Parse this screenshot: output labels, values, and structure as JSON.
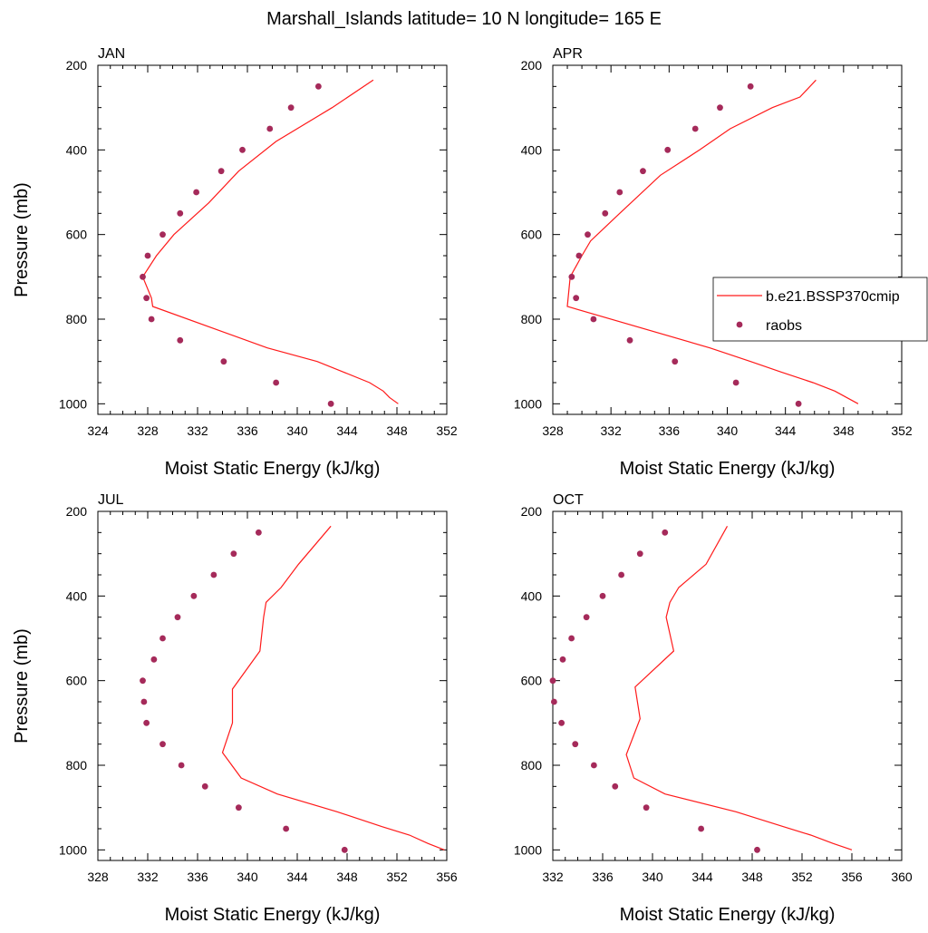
{
  "title": "Marshall_Islands  latitude= 10 N longitude= 165 E",
  "legend": {
    "items": [
      {
        "label": "b.e21.BSSP370cmip",
        "kind": "line"
      },
      {
        "label": "raobs",
        "kind": "marker"
      }
    ]
  },
  "colors": {
    "model_line": "#ff1a1a",
    "raobs_marker": "#a52a5a"
  },
  "chart_data": [
    {
      "type": "line",
      "title": "JAN",
      "xlabel": "Moist Static Energy (kJ/kg)",
      "ylabel": "Pressure (mb)",
      "xlim": [
        324,
        352
      ],
      "ylim": [
        1025,
        200
      ],
      "xticks": [
        324,
        328,
        332,
        336,
        340,
        344,
        348,
        352
      ],
      "yticks": [
        200,
        400,
        600,
        800,
        1000
      ],
      "series": [
        {
          "name": "b.e21.BSSP370cmip",
          "style": "line",
          "x": [
            348.1,
            347.4,
            346.9,
            345.8,
            343.7,
            341.6,
            337.6,
            328.4,
            328.3,
            327.6,
            328.7,
            330.1,
            332.9,
            335.3,
            338.3,
            342.8,
            346.1
          ],
          "y": [
            1000,
            985,
            970,
            950,
            925,
            900,
            868,
            770,
            750,
            700,
            650,
            600,
            525,
            450,
            380,
            300,
            235
          ]
        },
        {
          "name": "raobs",
          "style": "marker",
          "x": [
            342.7,
            338.3,
            334.1,
            330.6,
            328.3,
            327.9,
            327.6,
            328.0,
            329.2,
            330.6,
            331.9,
            333.9,
            335.6,
            337.8,
            339.5,
            341.7
          ],
          "y": [
            1000,
            950,
            900,
            850,
            800,
            750,
            700,
            650,
            600,
            550,
            500,
            450,
            400,
            350,
            300,
            250
          ]
        }
      ]
    },
    {
      "type": "line",
      "title": "APR",
      "xlabel": "Moist Static Energy (kJ/kg)",
      "ylabel": "",
      "xlim": [
        328,
        352
      ],
      "ylim": [
        1025,
        200
      ],
      "xticks": [
        328,
        332,
        336,
        340,
        344,
        348,
        352
      ],
      "yticks": [
        200,
        400,
        600,
        800,
        1000
      ],
      "series": [
        {
          "name": "b.e21.BSSP370cmip",
          "style": "line",
          "x": [
            349.0,
            347.4,
            345.9,
            343.7,
            341.6,
            338.8,
            329.0,
            329.2,
            330.0,
            330.6,
            332.6,
            335.4,
            338.1,
            340.2,
            343.1,
            345.0,
            346.1
          ],
          "y": [
            1000,
            970,
            950,
            925,
            900,
            868,
            770,
            700,
            650,
            615,
            550,
            460,
            400,
            350,
            300,
            275,
            235
          ]
        },
        {
          "name": "raobs",
          "style": "marker",
          "x": [
            344.9,
            340.6,
            336.4,
            333.3,
            330.8,
            329.6,
            329.3,
            329.8,
            330.4,
            331.6,
            332.6,
            334.2,
            335.9,
            337.8,
            339.5,
            341.6
          ],
          "y": [
            1000,
            950,
            900,
            850,
            800,
            750,
            700,
            650,
            600,
            550,
            500,
            450,
            400,
            350,
            300,
            250
          ]
        }
      ]
    },
    {
      "type": "line",
      "title": "JUL",
      "xlabel": "Moist Static Energy (kJ/kg)",
      "ylabel": "Pressure (mb)",
      "xlim": [
        328,
        356
      ],
      "ylim": [
        1025,
        200
      ],
      "xticks": [
        328,
        332,
        336,
        340,
        344,
        348,
        352,
        356
      ],
      "yticks": [
        200,
        400,
        600,
        800,
        1000
      ],
      "series": [
        {
          "name": "b.e21.BSSP370cmip",
          "style": "line",
          "x": [
            355.8,
            354.5,
            353.0,
            350.8,
            347.2,
            342.4,
            339.5,
            338.0,
            338.8,
            338.8,
            341.0,
            341.3,
            341.5,
            342.7,
            344.1,
            346.7
          ],
          "y": [
            1000,
            985,
            965,
            945,
            910,
            868,
            830,
            770,
            700,
            620,
            530,
            450,
            415,
            380,
            325,
            235
          ]
        },
        {
          "name": "raobs",
          "style": "marker",
          "x": [
            347.8,
            343.1,
            339.3,
            336.6,
            334.7,
            333.2,
            331.9,
            331.7,
            331.6,
            332.5,
            333.2,
            334.4,
            335.7,
            337.3,
            338.9,
            340.9
          ],
          "y": [
            1000,
            950,
            900,
            850,
            800,
            750,
            700,
            650,
            600,
            550,
            500,
            450,
            400,
            350,
            300,
            250
          ]
        }
      ]
    },
    {
      "type": "line",
      "title": "OCT",
      "xlabel": "Moist Static Energy (kJ/kg)",
      "ylabel": "",
      "xlim": [
        332,
        360
      ],
      "ylim": [
        1025,
        200
      ],
      "xticks": [
        332,
        336,
        340,
        344,
        348,
        352,
        356,
        360
      ],
      "yticks": [
        200,
        400,
        600,
        800,
        1000
      ],
      "series": [
        {
          "name": "b.e21.BSSP370cmip",
          "style": "line",
          "x": [
            356.0,
            354.5,
            352.7,
            350.5,
            346.7,
            341.0,
            338.5,
            337.9,
            339.0,
            338.6,
            341.7,
            341.1,
            341.4,
            342.1,
            344.3,
            346.0
          ],
          "y": [
            1000,
            985,
            965,
            945,
            910,
            868,
            830,
            775,
            690,
            615,
            530,
            450,
            415,
            380,
            325,
            235
          ]
        },
        {
          "name": "raobs",
          "style": "marker",
          "x": [
            348.4,
            343.9,
            339.5,
            337.0,
            335.3,
            333.8,
            332.7,
            332.1,
            332.0,
            332.8,
            333.5,
            334.7,
            336.0,
            337.5,
            339.0,
            341.0
          ],
          "y": [
            1000,
            950,
            900,
            850,
            800,
            750,
            700,
            650,
            600,
            550,
            500,
            450,
            400,
            350,
            300,
            250
          ]
        }
      ]
    }
  ]
}
